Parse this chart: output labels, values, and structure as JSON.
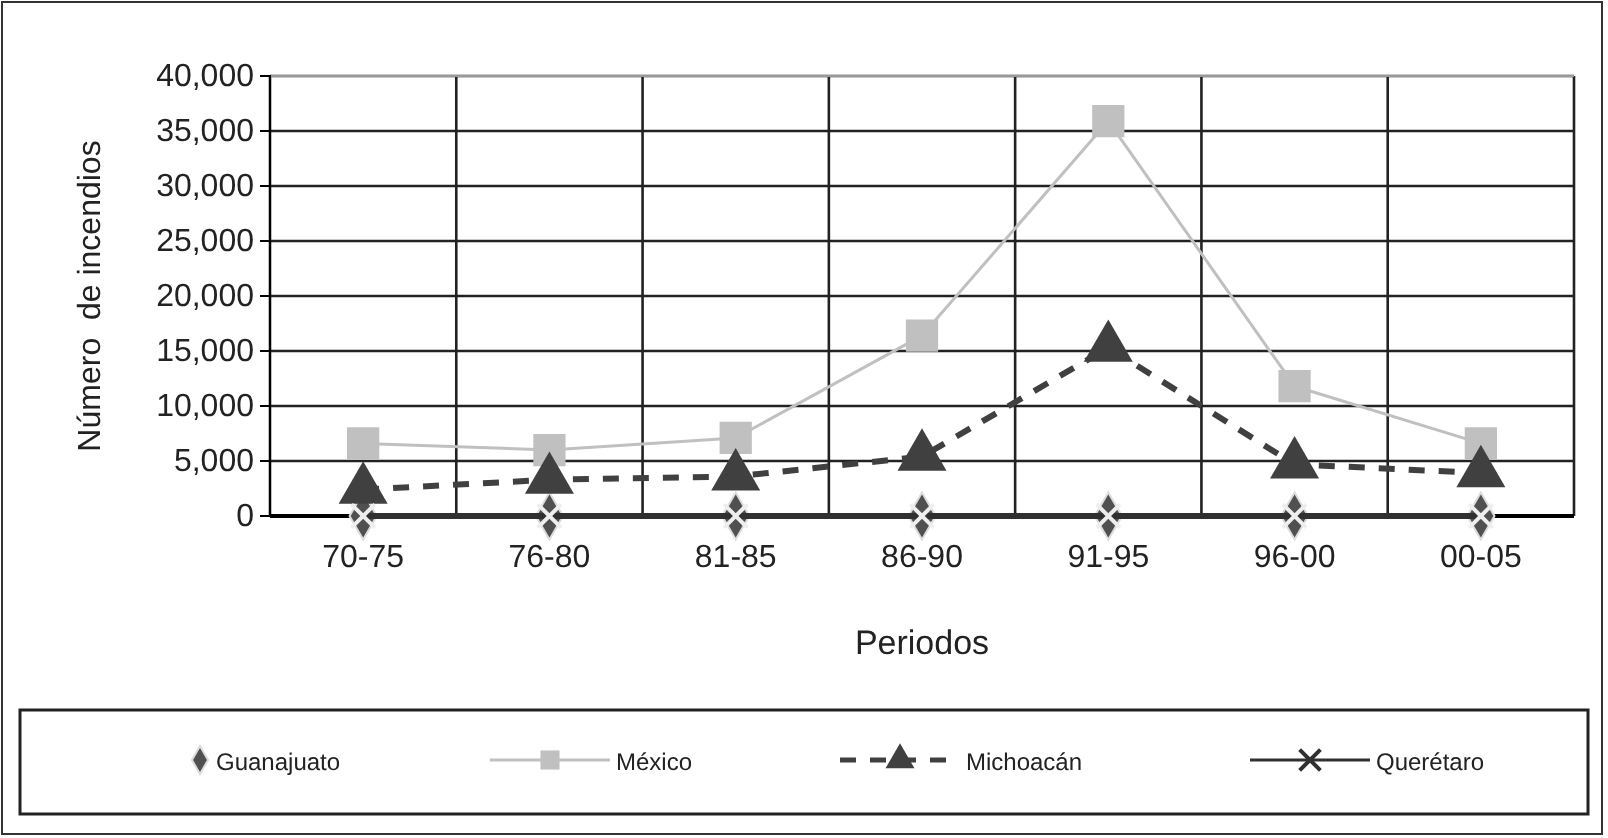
{
  "chart_data": {
    "type": "line",
    "xlabel": "Periodos",
    "ylabel": "Número  de incendios",
    "categories": [
      "70-75",
      "76-80",
      "81-85",
      "86-90",
      "91-95",
      "96-00",
      "00-05"
    ],
    "series": [
      {
        "name": "Guanajuato",
        "type": "scatter",
        "marker": "diamond",
        "color": "#505050",
        "values": [
          0,
          0,
          0,
          0,
          0,
          0,
          0
        ]
      },
      {
        "name": "México",
        "color": "#c0c0c0",
        "marker": "square",
        "line_style": "solid",
        "values": [
          6600,
          6000,
          7100,
          16400,
          35900,
          11800,
          6600
        ]
      },
      {
        "name": "Michoacán",
        "color": "#404040",
        "marker": "triangle",
        "line_style": "dashed",
        "values": [
          2400,
          3300,
          3600,
          5400,
          15300,
          4700,
          3900
        ]
      },
      {
        "name": "Querétaro",
        "color": "#303030",
        "marker": "cross",
        "line_style": "solid",
        "values": [
          0,
          0,
          0,
          0,
          0,
          0,
          0
        ]
      }
    ],
    "ylim": [
      0,
      40000
    ],
    "yticks": [
      {
        "value": 0,
        "label": "0"
      },
      {
        "value": 5000,
        "label": "5,000"
      },
      {
        "value": 10000,
        "label": "10,000"
      },
      {
        "value": 15000,
        "label": "15,000"
      },
      {
        "value": 20000,
        "label": "20,000"
      },
      {
        "value": 25000,
        "label": "25,000"
      },
      {
        "value": 30000,
        "label": "30,000"
      },
      {
        "value": 35000,
        "label": "35,000"
      },
      {
        "value": 40000,
        "label": "40,000"
      }
    ],
    "grid": true,
    "legend": "bottom"
  }
}
